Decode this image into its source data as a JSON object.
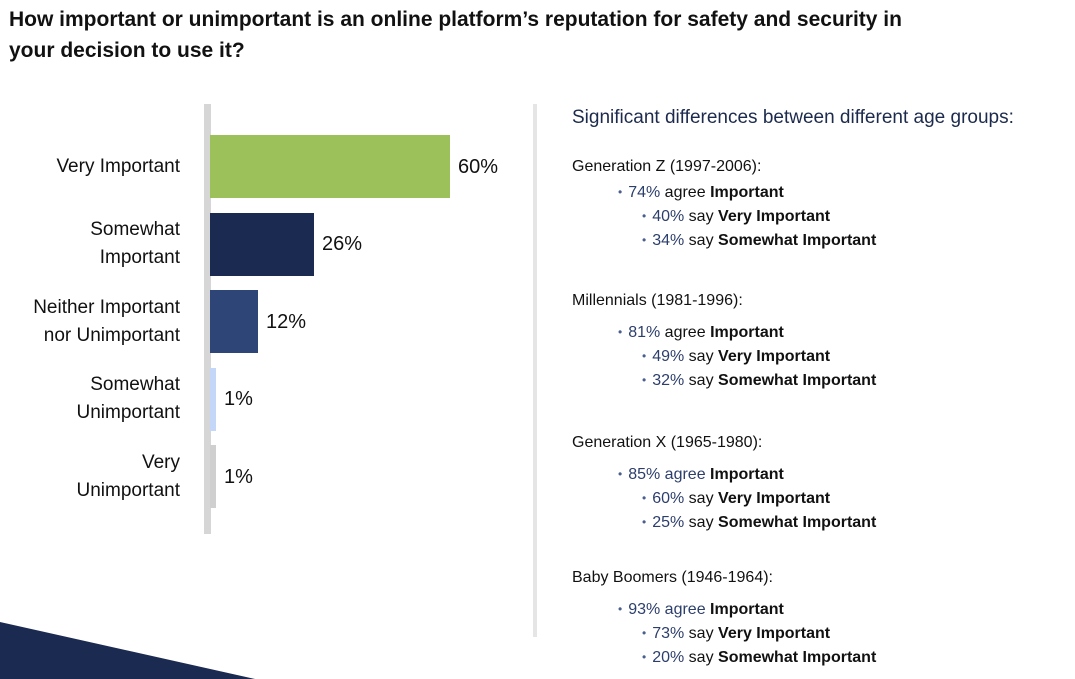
{
  "title": "How important or unimportant is an online platform’s reputation for safety and security in your decision to use it?",
  "chart_data": {
    "type": "bar",
    "orientation": "horizontal",
    "categories": [
      "Very Important",
      "Somewhat Important",
      "Neither Important nor Unimportant",
      "Somewhat Unimportant",
      "Very Unimportant"
    ],
    "category_lines": [
      [
        "Very Important"
      ],
      [
        "Somewhat",
        "Important"
      ],
      [
        "Neither Important",
        "nor Unimportant"
      ],
      [
        "Somewhat",
        "Unimportant"
      ],
      [
        "Very",
        "Unimportant"
      ]
    ],
    "values": [
      60,
      26,
      12,
      1,
      1
    ],
    "value_labels": [
      "60%",
      "26%",
      "12%",
      "1%",
      "1%"
    ],
    "colors": [
      "#9dc15a",
      "#1b2a50",
      "#2e4577",
      "#c5d7f8",
      "#cfcfcf"
    ],
    "xlim": [
      0,
      60
    ],
    "legend": "none",
    "grid": false
  },
  "panel": {
    "title": "Significant differences between different age groups:",
    "bullet_glyph": "•",
    "groups": [
      {
        "name": "Generation Z (1997-2006):",
        "agree_pct": "74%",
        "agree_word": "agree",
        "agree_label": "Important",
        "items": [
          {
            "pct": "40%",
            "say": "say",
            "label": "Very Important"
          },
          {
            "pct": "34%",
            "say": "say",
            "label": "Somewhat Important"
          }
        ]
      },
      {
        "name": "Millennials (1981-1996):",
        "agree_pct": "81%",
        "agree_word": "agree",
        "agree_label": "Important",
        "items": [
          {
            "pct": "49%",
            "say": "say",
            "label": "Very Important"
          },
          {
            "pct": "32%",
            "say": "say",
            "label": "Somewhat Important"
          }
        ]
      },
      {
        "name": "Generation X (1965-1980):",
        "agree_pct": "85% agree",
        "agree_word": "",
        "agree_label": "Important",
        "items": [
          {
            "pct": "60%",
            "say": "say",
            "label": "Very Important"
          },
          {
            "pct": "25%",
            "say": "say",
            "label": "Somewhat Important"
          }
        ]
      },
      {
        "name": "Baby Boomers (1946-1964):",
        "agree_pct": "93% agree",
        "agree_word": "",
        "agree_label": "Important",
        "items": [
          {
            "pct": "73%",
            "say": "say",
            "label": "Very Important"
          },
          {
            "pct": "20%",
            "say": "say",
            "label": "Somewhat Important"
          }
        ]
      }
    ]
  },
  "colors": {
    "accent_navy": "#1b2a50",
    "green": "#9dc15a",
    "text": "#111111"
  }
}
